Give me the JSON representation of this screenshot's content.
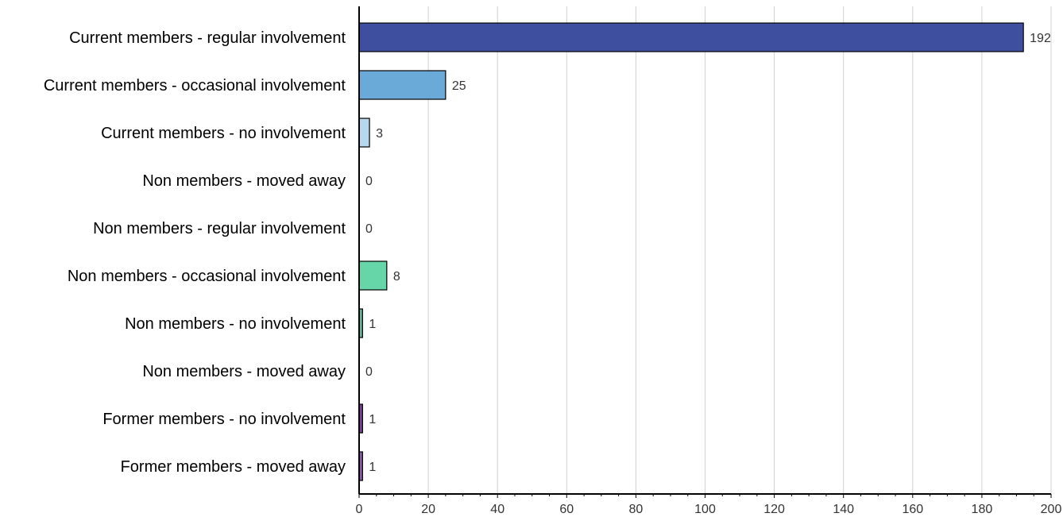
{
  "chart_data": {
    "type": "bar",
    "orientation": "horizontal",
    "title": "",
    "xlabel": "",
    "ylabel": "",
    "xlim": [
      0,
      200
    ],
    "x_ticks": [
      0,
      20,
      40,
      60,
      80,
      100,
      120,
      140,
      160,
      180,
      200
    ],
    "grid": "vertical",
    "legend": "none",
    "categories": [
      "Current members - regular involvement",
      "Current members - occasional involvement",
      "Current members - no involvement",
      "Non members - moved away",
      "Non members - regular involvement",
      "Non members - occasional involvement",
      "Non members - no involvement",
      "Non members - moved away",
      "Former members - no involvement",
      "Former members - moved away"
    ],
    "values": [
      192,
      25,
      3,
      0,
      0,
      8,
      1,
      0,
      1,
      1
    ],
    "colors": [
      "#3f4f9f",
      "#6aaad8",
      "#b7d7ec",
      "#9fd3b9",
      "#8fd8b6",
      "#66d6a8",
      "#5ab89a",
      "#9b7fc0",
      "#7a3f99",
      "#8a5aa8"
    ]
  }
}
